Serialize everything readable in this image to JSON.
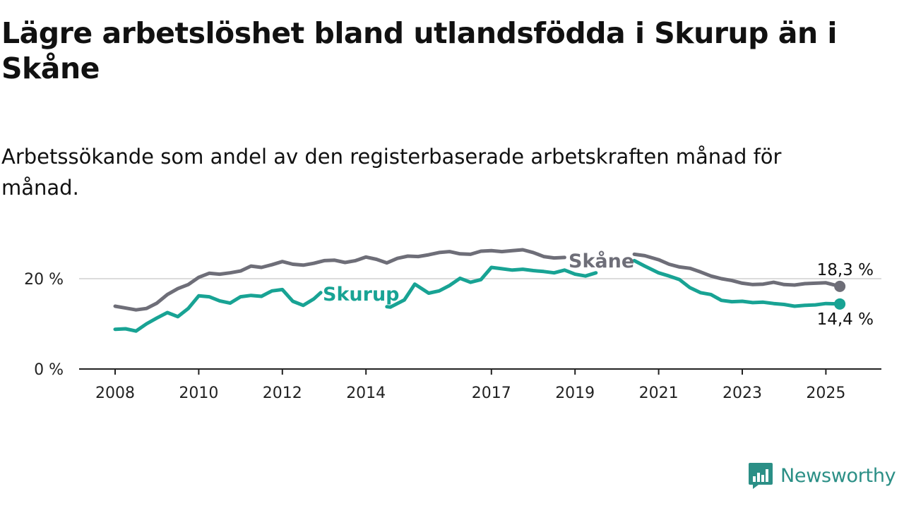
{
  "title": "Lägre arbetslöshet bland utlandsfödda i Skurup än i Skåne",
  "subtitle": "Arbetssökande som andel av den registerbaserade arbetskraften månad för månad.",
  "brand": {
    "name": "Newsworthy",
    "icon": "newsworthy-logo-icon",
    "color": "#2b8f86"
  },
  "chart_data": {
    "type": "line",
    "x_ticks": [
      "2008",
      "2010",
      "2012",
      "2014",
      "2017",
      "2019",
      "2021",
      "2023",
      "2025"
    ],
    "y_ticks": [
      {
        "value": 0,
        "label": "0 %"
      },
      {
        "value": 20,
        "label": "20 %"
      }
    ],
    "ylim": [
      0,
      28
    ],
    "grid": "horizontal",
    "series": [
      {
        "name": "Skåne",
        "color": "#6e6e78",
        "end_label": "18,3 %",
        "points": [
          [
            "2008-01",
            13.9
          ],
          [
            "2008-04",
            13.5
          ],
          [
            "2008-07",
            13.1
          ],
          [
            "2008-10",
            13.4
          ],
          [
            "2009-01",
            14.6
          ],
          [
            "2009-04",
            16.5
          ],
          [
            "2009-07",
            17.8
          ],
          [
            "2009-10",
            18.7
          ],
          [
            "2010-01",
            20.3
          ],
          [
            "2010-04",
            21.2
          ],
          [
            "2010-07",
            21.0
          ],
          [
            "2010-10",
            21.3
          ],
          [
            "2011-01",
            21.7
          ],
          [
            "2011-04",
            22.8
          ],
          [
            "2011-07",
            22.5
          ],
          [
            "2011-10",
            23.1
          ],
          [
            "2012-01",
            23.8
          ],
          [
            "2012-04",
            23.2
          ],
          [
            "2012-07",
            23.0
          ],
          [
            "2012-10",
            23.4
          ],
          [
            "2013-01",
            24.0
          ],
          [
            "2013-04",
            24.1
          ],
          [
            "2013-07",
            23.6
          ],
          [
            "2013-10",
            24.0
          ],
          [
            "2014-01",
            24.8
          ],
          [
            "2014-04",
            24.3
          ],
          [
            "2014-07",
            23.5
          ],
          [
            "2014-10",
            24.5
          ],
          [
            "2015-01",
            25.0
          ],
          [
            "2015-04",
            24.9
          ],
          [
            "2015-07",
            25.3
          ],
          [
            "2015-10",
            25.8
          ],
          [
            "2016-01",
            26.0
          ],
          [
            "2016-04",
            25.5
          ],
          [
            "2016-07",
            25.4
          ],
          [
            "2016-10",
            26.1
          ],
          [
            "2017-01",
            26.2
          ],
          [
            "2017-04",
            26.0
          ],
          [
            "2017-07",
            26.2
          ],
          [
            "2017-10",
            26.4
          ],
          [
            "2018-01",
            25.8
          ],
          [
            "2018-04",
            24.9
          ],
          [
            "2018-07",
            24.6
          ],
          [
            "2018-10",
            24.7
          ],
          [
            "2020-06",
            25.4
          ],
          [
            "2020-09",
            25.1
          ],
          [
            "2021-01",
            24.2
          ],
          [
            "2021-04",
            23.2
          ],
          [
            "2021-07",
            22.6
          ],
          [
            "2021-10",
            22.3
          ],
          [
            "2022-01",
            21.5
          ],
          [
            "2022-04",
            20.6
          ],
          [
            "2022-07",
            20.0
          ],
          [
            "2022-10",
            19.6
          ],
          [
            "2023-01",
            19.0
          ],
          [
            "2023-04",
            18.7
          ],
          [
            "2023-07",
            18.8
          ],
          [
            "2023-10",
            19.2
          ],
          [
            "2024-01",
            18.7
          ],
          [
            "2024-04",
            18.6
          ],
          [
            "2024-07",
            18.9
          ],
          [
            "2024-10",
            19.0
          ],
          [
            "2025-01",
            19.1
          ],
          [
            "2025-05",
            18.3
          ]
        ]
      },
      {
        "name": "Skurup",
        "color": "#18a394",
        "end_label": "14,4 %",
        "points": [
          [
            "2008-01",
            8.8
          ],
          [
            "2008-04",
            8.9
          ],
          [
            "2008-07",
            8.4
          ],
          [
            "2008-10",
            10.0
          ],
          [
            "2009-01",
            11.3
          ],
          [
            "2009-04",
            12.5
          ],
          [
            "2009-07",
            11.6
          ],
          [
            "2009-10",
            13.4
          ],
          [
            "2010-01",
            16.2
          ],
          [
            "2010-04",
            16.0
          ],
          [
            "2010-07",
            15.1
          ],
          [
            "2010-10",
            14.6
          ],
          [
            "2011-01",
            16.0
          ],
          [
            "2011-04",
            16.3
          ],
          [
            "2011-07",
            16.1
          ],
          [
            "2011-10",
            17.3
          ],
          [
            "2012-01",
            17.6
          ],
          [
            "2012-04",
            15.0
          ],
          [
            "2012-07",
            14.1
          ],
          [
            "2012-10",
            15.5
          ],
          [
            "2012-12",
            16.9
          ],
          [
            "2014-07",
            13.8
          ],
          [
            "2014-08",
            13.7
          ],
          [
            "2014-12",
            15.3
          ],
          [
            "2015-03",
            18.8
          ],
          [
            "2015-07",
            16.8
          ],
          [
            "2015-10",
            17.3
          ],
          [
            "2016-01",
            18.5
          ],
          [
            "2016-04",
            20.1
          ],
          [
            "2016-07",
            19.2
          ],
          [
            "2016-10",
            19.8
          ],
          [
            "2017-01",
            22.5
          ],
          [
            "2017-04",
            22.2
          ],
          [
            "2017-07",
            21.9
          ],
          [
            "2017-10",
            22.1
          ],
          [
            "2018-01",
            21.8
          ],
          [
            "2018-04",
            21.6
          ],
          [
            "2018-07",
            21.3
          ],
          [
            "2018-10",
            21.9
          ],
          [
            "2019-01",
            21.0
          ],
          [
            "2019-04",
            20.6
          ],
          [
            "2019-07",
            21.3
          ],
          [
            "2020-06",
            24.0
          ],
          [
            "2020-09",
            22.8
          ],
          [
            "2021-01",
            21.3
          ],
          [
            "2021-04",
            20.6
          ],
          [
            "2021-07",
            19.8
          ],
          [
            "2021-10",
            18.0
          ],
          [
            "2022-01",
            16.9
          ],
          [
            "2022-04",
            16.5
          ],
          [
            "2022-07",
            15.2
          ],
          [
            "2022-10",
            14.9
          ],
          [
            "2023-01",
            15.0
          ],
          [
            "2023-04",
            14.7
          ],
          [
            "2023-07",
            14.8
          ],
          [
            "2023-10",
            14.5
          ],
          [
            "2024-01",
            14.3
          ],
          [
            "2024-04",
            13.9
          ],
          [
            "2024-07",
            14.1
          ],
          [
            "2024-10",
            14.2
          ],
          [
            "2025-01",
            14.5
          ],
          [
            "2025-05",
            14.4
          ]
        ]
      }
    ]
  }
}
